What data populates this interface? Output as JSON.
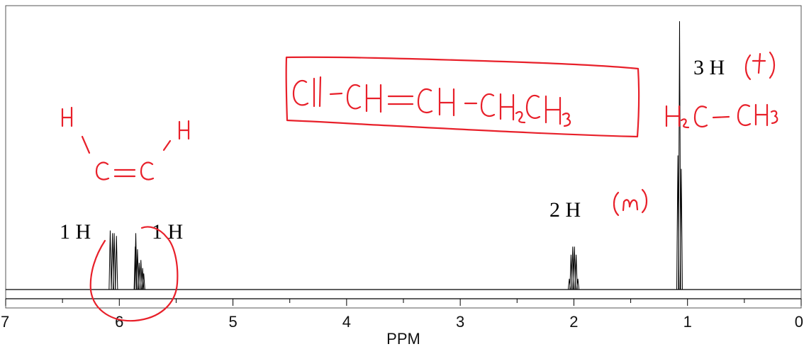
{
  "chart_data": {
    "type": "line",
    "title": "",
    "xlabel": "PPM",
    "ylabel": "",
    "xlim": [
      7,
      0
    ],
    "x_axis_reversed": true,
    "grid": false,
    "x_ticks": [
      "7",
      "6",
      "5",
      "4",
      "3",
      "2",
      "1",
      "0"
    ],
    "peak_groups": [
      {
        "center_ppm": 6.03,
        "integration": "1 H",
        "lines": [
          {
            "ppm": 6.08,
            "h": 0.22
          },
          {
            "ppm": 6.06,
            "h": 0.21
          },
          {
            "ppm": 6.045,
            "h": 0.21
          },
          {
            "ppm": 6.025,
            "h": 0.2
          }
        ]
      },
      {
        "center_ppm": 5.82,
        "integration": "1 H",
        "lines": [
          {
            "ppm": 5.86,
            "h": 0.16
          },
          {
            "ppm": 5.855,
            "h": 0.21
          },
          {
            "ppm": 5.84,
            "h": 0.15
          },
          {
            "ppm": 5.825,
            "h": 0.1
          },
          {
            "ppm": 5.81,
            "h": 0.11
          },
          {
            "ppm": 5.795,
            "h": 0.08
          },
          {
            "ppm": 5.785,
            "h": 0.06
          }
        ]
      },
      {
        "center_ppm": 2.0,
        "integration": "2 H",
        "lines": [
          {
            "ppm": 2.04,
            "h": 0.04
          },
          {
            "ppm": 2.025,
            "h": 0.13
          },
          {
            "ppm": 2.01,
            "h": 0.16
          },
          {
            "ppm": 1.995,
            "h": 0.16
          },
          {
            "ppm": 1.98,
            "h": 0.13
          },
          {
            "ppm": 1.965,
            "h": 0.04
          }
        ]
      },
      {
        "center_ppm": 1.05,
        "integration": "3 H",
        "lines": [
          {
            "ppm": 1.085,
            "h": 0.5
          },
          {
            "ppm": 1.07,
            "h": 1.0
          },
          {
            "ppm": 1.055,
            "h": 0.45
          }
        ]
      }
    ]
  },
  "annotations": {
    "formula": "Cl - CH = CH - CH₂CH₃",
    "ethyl_fragment": "H₂C – CH₃",
    "triplet_note": "(t)",
    "multiplet_note": "(m)",
    "alkene_sketch": [
      "H",
      "H",
      "C=C"
    ]
  },
  "colors": {
    "spectrum": "#000000",
    "annotation_ink": "#e8202a"
  }
}
